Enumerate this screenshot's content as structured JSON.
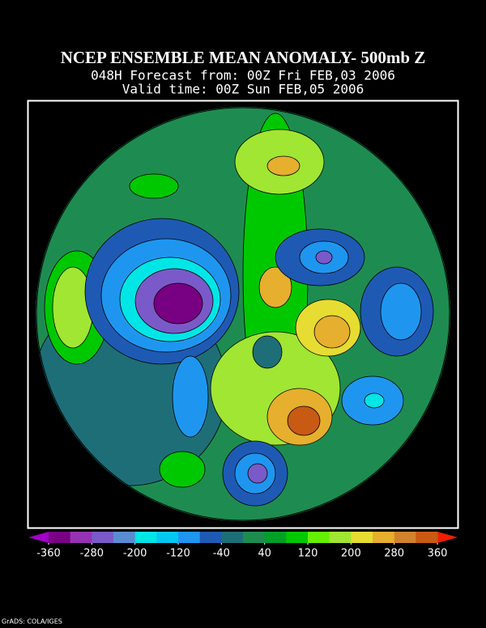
{
  "header": {
    "title": "NCEP ENSEMBLE MEAN ANOMALY- 500mb Z",
    "line1": "048H Forecast from: 00Z Fri FEB,03 2006",
    "line2": "Valid time: 00Z Sun FEB,05 2006"
  },
  "colorbar": {
    "ticks": [
      -360,
      -280,
      -200,
      -120,
      -40,
      40,
      120,
      200,
      280,
      360
    ],
    "colors": [
      "#a000c8",
      "#780082",
      "#9632b4",
      "#7a5ac8",
      "#5a8cd2",
      "#00e6e6",
      "#00c8f0",
      "#1e96f0",
      "#1e5ab4",
      "#1e6e78",
      "#1e8c50",
      "#00a028",
      "#00c800",
      "#64f000",
      "#a0e632",
      "#e6dc32",
      "#e6af2d",
      "#d2822d",
      "#c85a14",
      "#f01e00"
    ]
  },
  "footer": "GrADS: COLA/IGES"
}
